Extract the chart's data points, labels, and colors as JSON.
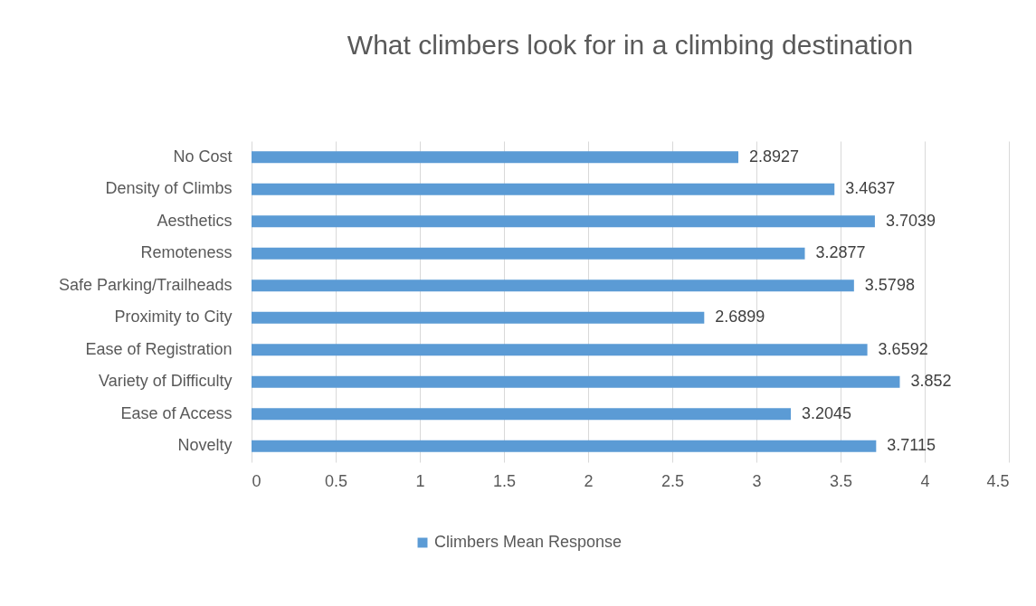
{
  "chart_data": {
    "type": "bar",
    "orientation": "horizontal",
    "title": "What climbers look for in a climbing destination",
    "categories": [
      "No Cost",
      "Density of Climbs",
      "Aesthetics",
      "Remoteness",
      "Safe Parking/Trailheads",
      "Proximity to City",
      "Ease of Registration",
      "Variety of Difficulty",
      "Ease of Access",
      "Novelty"
    ],
    "series": [
      {
        "name": "Climbers Mean Response",
        "color": "#5b9bd5",
        "values": [
          2.8927,
          3.4637,
          3.7039,
          3.2877,
          3.5798,
          2.6899,
          3.6592,
          3.852,
          3.2045,
          3.7115
        ]
      }
    ],
    "xlim": [
      0,
      4.5
    ],
    "xticks": [
      0,
      0.5,
      1,
      1.5,
      2,
      2.5,
      3,
      3.5,
      4,
      4.5
    ],
    "grid": "x",
    "legend": "bottom",
    "data_labels": true
  }
}
